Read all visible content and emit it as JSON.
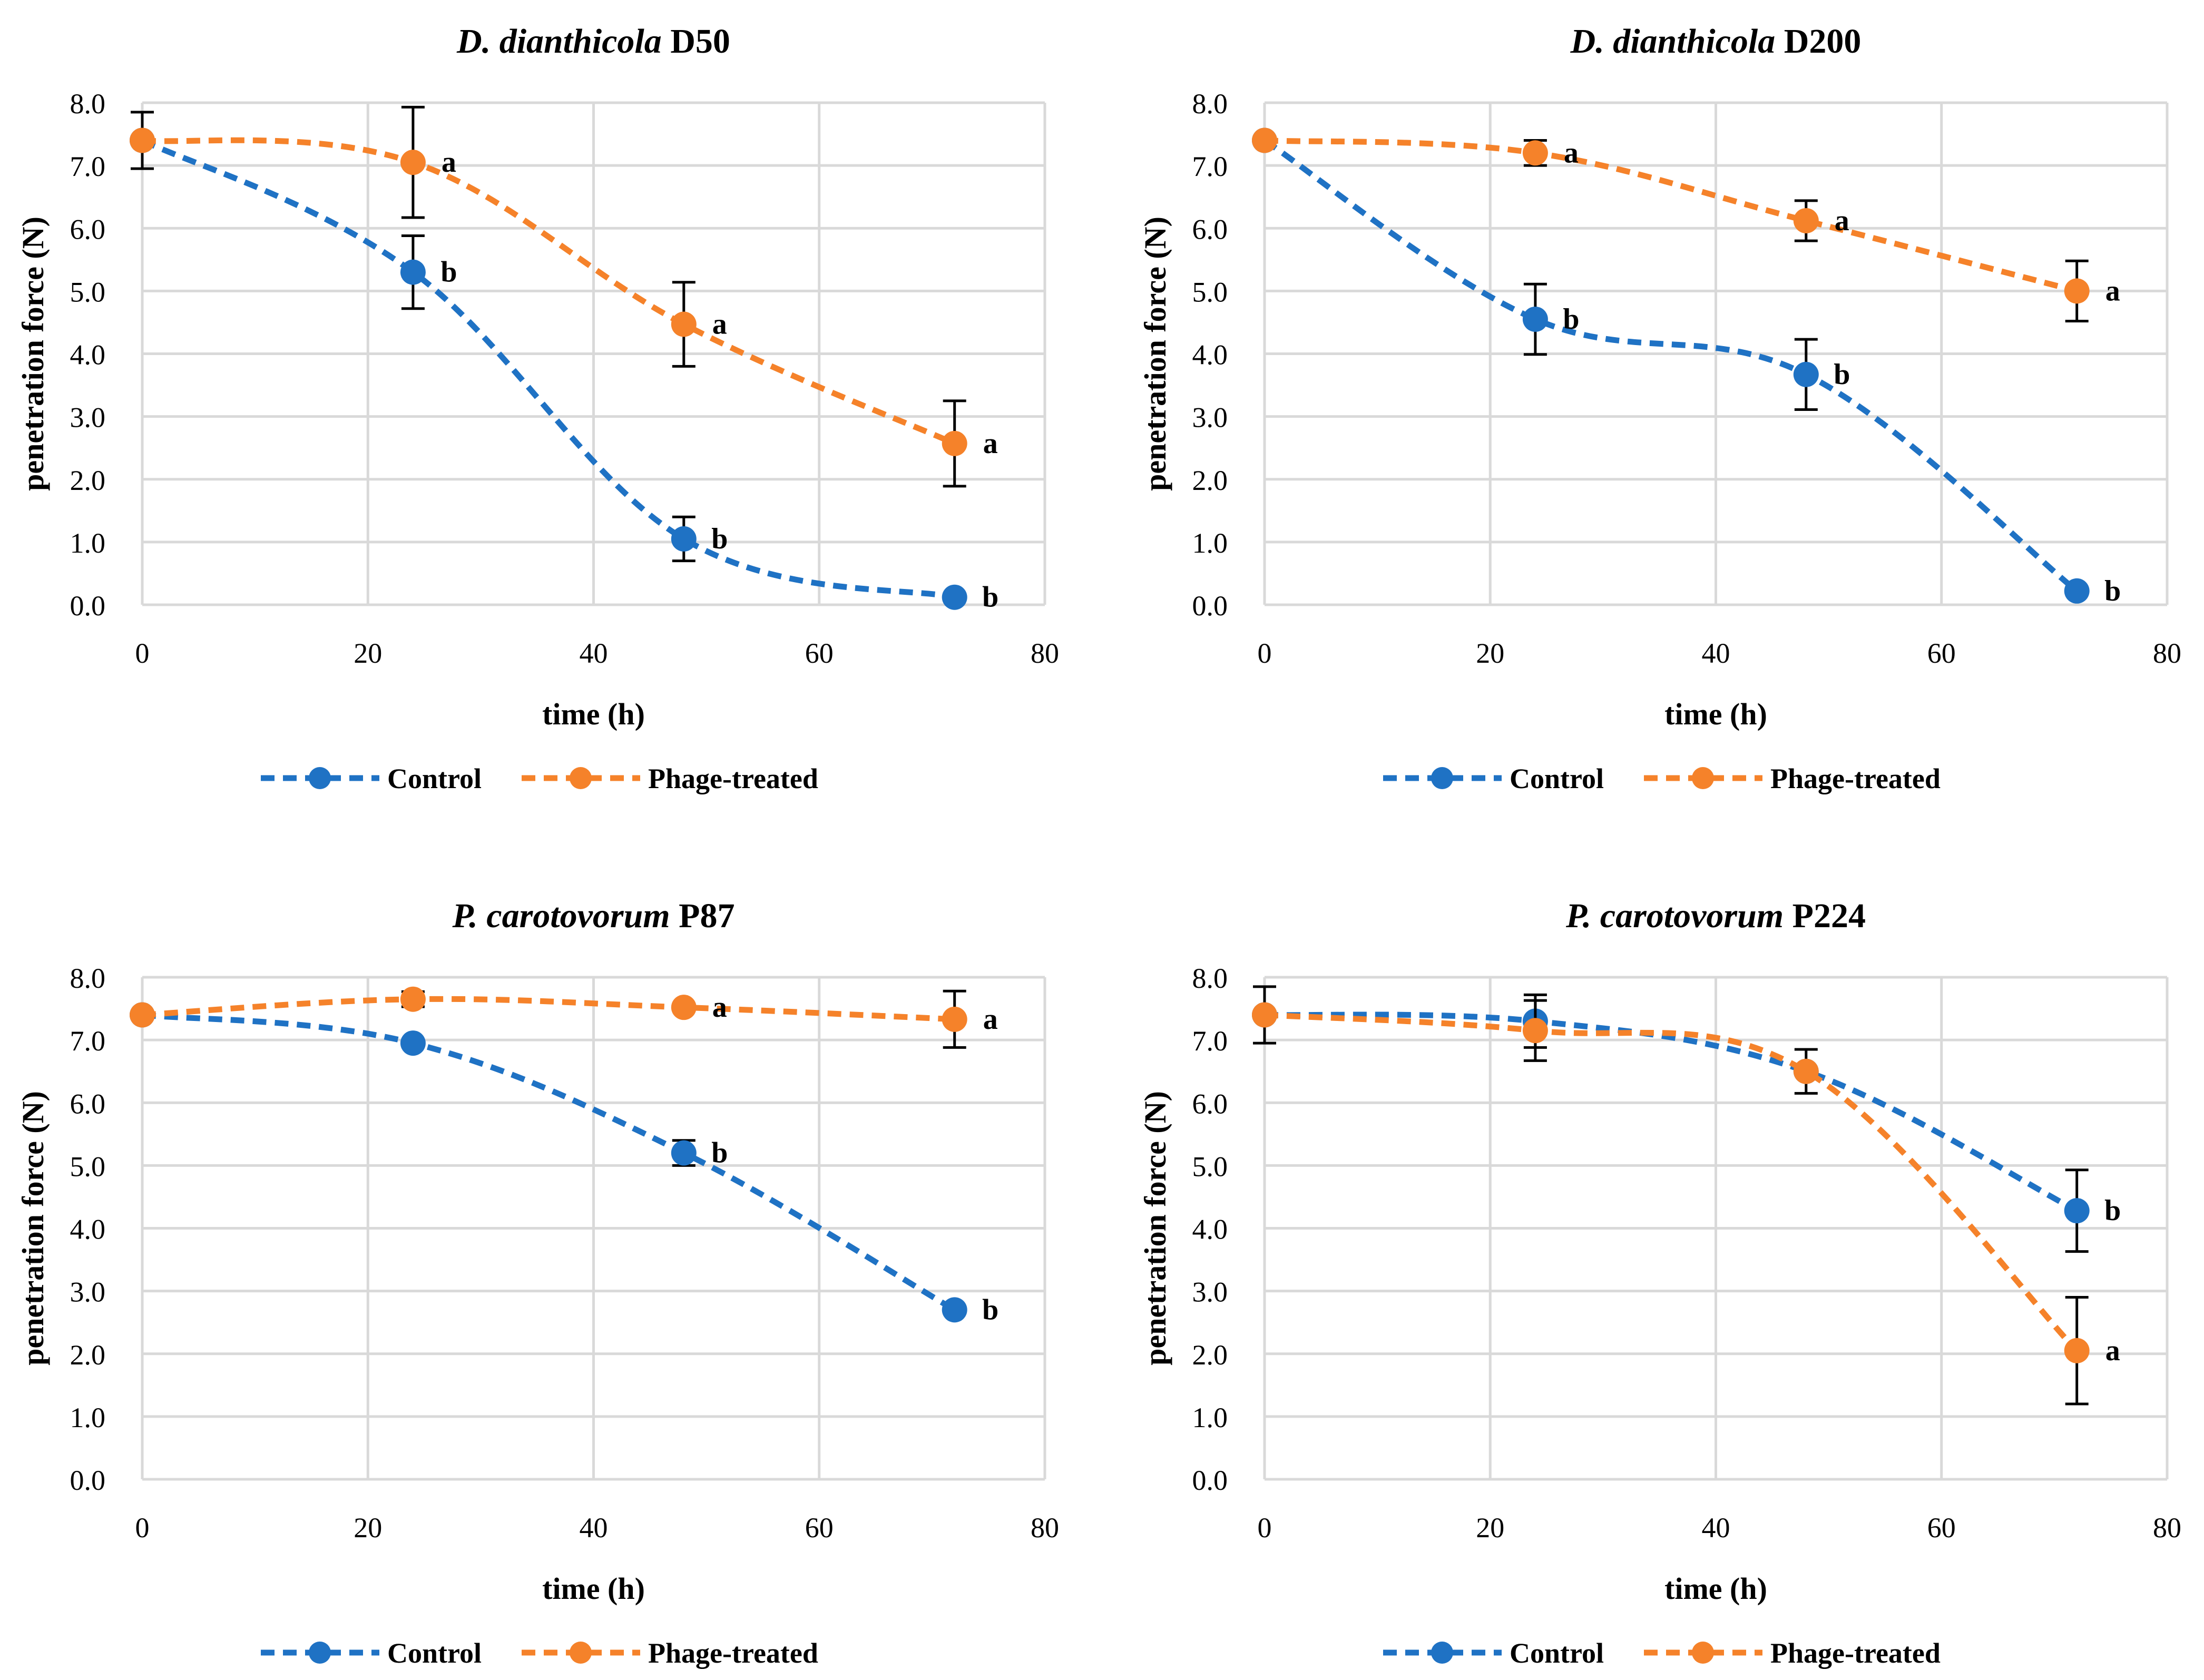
{
  "figure": {
    "series_colors": {
      "Control": "#1f72c4",
      "Phage-treated": "#f5822a"
    }
  },
  "chart_data": [
    {
      "type": "line",
      "title_species": "D. dianthicola",
      "title_strain": "D50",
      "xlabel": "time (h)",
      "ylabel": "penetration force (N)",
      "xlim": [
        0,
        80
      ],
      "ylim": [
        0,
        8
      ],
      "xticks": [
        "0",
        "20",
        "40",
        "60",
        "80"
      ],
      "yticks": [
        "0.0",
        "1.0",
        "2.0",
        "3.0",
        "4.0",
        "5.0",
        "6.0",
        "7.0",
        "8.0"
      ],
      "grid": true,
      "legend": "bottom",
      "x": [
        0,
        24,
        48,
        72
      ],
      "series": [
        {
          "name": "Control",
          "color": "#1f72c4",
          "values": [
            7.4,
            5.3,
            1.05,
            0.12
          ],
          "errors": [
            0.45,
            0.58,
            0.35,
            0.0
          ],
          "letters": [
            "",
            "b",
            "b",
            "b"
          ]
        },
        {
          "name": "Phage-treated",
          "color": "#f5822a",
          "values": [
            7.4,
            7.05,
            4.47,
            2.57
          ],
          "errors": [
            0.0,
            0.88,
            0.67,
            0.68
          ],
          "letters": [
            "",
            "a",
            "a",
            "a"
          ]
        }
      ]
    },
    {
      "type": "line",
      "title_species": "D. dianthicola",
      "title_strain": "D200",
      "xlabel": "time (h)",
      "ylabel": "penetration force (N)",
      "xlim": [
        0,
        80
      ],
      "ylim": [
        0,
        8
      ],
      "xticks": [
        "0",
        "20",
        "40",
        "60",
        "80"
      ],
      "yticks": [
        "0.0",
        "1.0",
        "2.0",
        "3.0",
        "4.0",
        "5.0",
        "6.0",
        "7.0",
        "8.0"
      ],
      "grid": true,
      "legend": "bottom",
      "x": [
        0,
        24,
        48,
        72
      ],
      "series": [
        {
          "name": "Control",
          "color": "#1f72c4",
          "values": [
            7.4,
            4.55,
            3.67,
            0.22
          ],
          "errors": [
            0.0,
            0.56,
            0.56,
            0.0
          ],
          "letters": [
            "",
            "b",
            "b",
            "b"
          ]
        },
        {
          "name": "Phage-treated",
          "color": "#f5822a",
          "values": [
            7.4,
            7.2,
            6.12,
            5.0
          ],
          "errors": [
            0.0,
            0.2,
            0.32,
            0.48
          ],
          "letters": [
            "",
            "a",
            "a",
            "a"
          ]
        }
      ]
    },
    {
      "type": "line",
      "title_species": "P. carotovorum",
      "title_strain": "P87",
      "xlabel": "time (h)",
      "ylabel": "penetration force (N)",
      "xlim": [
        0,
        80
      ],
      "ylim": [
        0,
        8
      ],
      "xticks": [
        "0",
        "20",
        "40",
        "60",
        "80"
      ],
      "yticks": [
        "0.0",
        "1.0",
        "2.0",
        "3.0",
        "4.0",
        "5.0",
        "6.0",
        "7.0",
        "8.0"
      ],
      "grid": true,
      "legend": "bottom",
      "x": [
        0,
        24,
        48,
        72
      ],
      "series": [
        {
          "name": "Control",
          "color": "#1f72c4",
          "values": [
            7.4,
            6.95,
            5.2,
            2.7
          ],
          "errors": [
            0.0,
            0.0,
            0.2,
            0.0
          ],
          "letters": [
            "",
            "",
            "b",
            "b"
          ]
        },
        {
          "name": "Phage-treated",
          "color": "#f5822a",
          "values": [
            7.4,
            7.65,
            7.52,
            7.33
          ],
          "errors": [
            0.0,
            0.12,
            0.0,
            0.45
          ],
          "letters": [
            "",
            "",
            "a",
            "a"
          ]
        }
      ]
    },
    {
      "type": "line",
      "title_species": "P. carotovorum",
      "title_strain": "P224",
      "xlabel": "time (h)",
      "ylabel": "penetration force (N)",
      "xlim": [
        0,
        80
      ],
      "ylim": [
        0,
        8
      ],
      "xticks": [
        "0",
        "20",
        "40",
        "60",
        "80"
      ],
      "yticks": [
        "0.0",
        "1.0",
        "2.0",
        "3.0",
        "4.0",
        "5.0",
        "6.0",
        "7.0",
        "8.0"
      ],
      "grid": true,
      "legend": "bottom",
      "x": [
        0,
        24,
        48,
        72
      ],
      "series": [
        {
          "name": "Control",
          "color": "#1f72c4",
          "values": [
            7.4,
            7.3,
            6.5,
            4.28
          ],
          "errors": [
            0.45,
            0.42,
            0.35,
            0.65
          ],
          "letters": [
            "",
            "",
            "",
            "b"
          ]
        },
        {
          "name": "Phage-treated",
          "color": "#f5822a",
          "values": [
            7.4,
            7.15,
            6.5,
            2.05
          ],
          "errors": [
            0.0,
            0.48,
            0.0,
            0.85
          ],
          "letters": [
            "",
            "",
            "",
            "a"
          ]
        }
      ]
    }
  ]
}
